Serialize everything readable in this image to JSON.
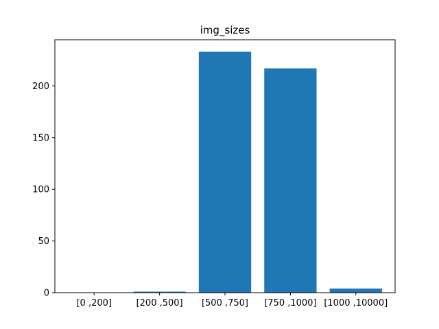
{
  "chart_data": {
    "type": "bar",
    "title": "img_sizes",
    "xlabel": "",
    "ylabel": "",
    "categories": [
      "[0 ,200]",
      "[200 ,500]",
      "[500 ,750]",
      "[750 ,1000]",
      "[1000 ,10000]"
    ],
    "values": [
      0,
      1,
      233,
      217,
      4
    ],
    "ylim": [
      0,
      244.65
    ],
    "yticks": [
      0,
      50,
      100,
      150,
      200
    ],
    "ytick_labels": [
      "0",
      "50",
      "100",
      "150",
      "200"
    ],
    "grid": false,
    "bar_color": "#1f77b4"
  }
}
